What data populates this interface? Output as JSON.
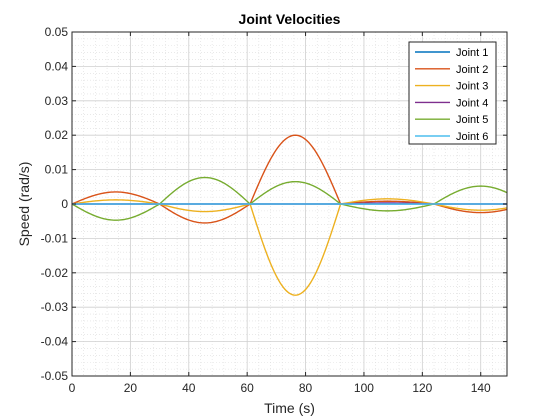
{
  "chart_data": {
    "type": "line",
    "title": "Joint Velocities",
    "xlabel": "Time (s)",
    "ylabel": "Speed (rad/s)",
    "xlim": [
      0,
      149
    ],
    "ylim": [
      -0.05,
      0.05
    ],
    "xticks": [
      0,
      20,
      40,
      60,
      80,
      100,
      120,
      140
    ],
    "xtick_labels": [
      "0",
      "20",
      "40",
      "60",
      "80",
      "100",
      "120",
      "140"
    ],
    "yticks": [
      0.05,
      0.04,
      0.03,
      0.02,
      0.01,
      0,
      -0.01,
      -0.02,
      -0.03,
      -0.04,
      -0.05
    ],
    "ytick_labels": [
      "0.05",
      "0.04",
      "0.03",
      "0.02",
      "0.01",
      "0",
      "-0.01",
      "-0.02",
      "-0.03",
      "-0.04",
      "-0.05"
    ],
    "grid": true,
    "minor_grid": true,
    "legend_position": "top-right",
    "x": [
      0,
      15,
      30,
      46,
      61,
      77,
      92,
      108,
      124,
      139,
      149
    ],
    "series": [
      {
        "name": "Joint 1",
        "color": "#0072BD",
        "values": [
          0,
          0,
          0,
          0,
          0,
          0,
          0,
          0,
          0,
          0,
          0
        ]
      },
      {
        "name": "Joint 2",
        "color": "#D95319",
        "values": [
          0,
          0.0035,
          0,
          -0.0055,
          0,
          0.02,
          0,
          0.0008,
          0,
          -0.0025,
          -0.0015
        ]
      },
      {
        "name": "Joint 3",
        "color": "#EDB120",
        "values": [
          0,
          0.0012,
          0,
          -0.0022,
          0,
          -0.0265,
          0,
          0.0015,
          0,
          -0.0018,
          -0.001
        ]
      },
      {
        "name": "Joint 4",
        "color": "#7E2F8E",
        "values": [
          0,
          0,
          0,
          0,
          0,
          0,
          0,
          0.0003,
          0,
          0,
          0
        ]
      },
      {
        "name": "Joint 5",
        "color": "#77AC30",
        "values": [
          0,
          -0.0047,
          0,
          0.0077,
          0,
          0.0065,
          0,
          -0.002,
          0,
          0.0052,
          0.003
        ]
      },
      {
        "name": "Joint 6",
        "color": "#4DBEEE",
        "values": [
          0,
          0,
          0,
          0,
          0,
          0,
          0,
          0,
          0,
          0,
          0
        ]
      }
    ],
    "segments": [
      [
        0,
        30
      ],
      [
        30,
        61
      ],
      [
        61,
        92
      ],
      [
        92,
        124
      ],
      [
        124,
        149
      ]
    ]
  }
}
